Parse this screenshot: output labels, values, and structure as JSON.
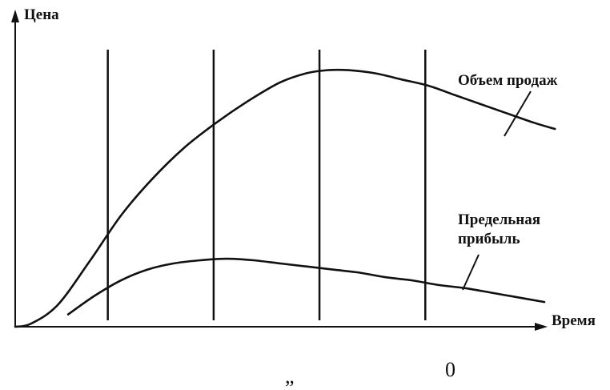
{
  "chart_data": {
    "type": "line",
    "title": "",
    "xlabel": "Время",
    "ylabel": "Цена",
    "xlim": [
      0,
      10
    ],
    "ylim": [
      0,
      10
    ],
    "grid": false,
    "stage_dividers_x": [
      1.75,
      3.75,
      5.75,
      7.75
    ],
    "series": [
      {
        "name": "Объем продаж",
        "x": [
          0.0,
          0.3,
          0.8,
          1.4,
          2.0,
          2.6,
          3.2,
          3.8,
          4.4,
          5.0,
          5.5,
          5.9,
          6.3,
          6.8,
          7.3,
          7.8,
          8.3,
          8.8,
          9.3,
          9.8,
          10.2
        ],
        "values": [
          0.0,
          0.1,
          0.7,
          2.1,
          3.6,
          4.8,
          5.8,
          6.6,
          7.3,
          7.9,
          8.2,
          8.3,
          8.3,
          8.2,
          8.0,
          7.8,
          7.5,
          7.2,
          6.9,
          6.6,
          6.4
        ]
      },
      {
        "name": "Предельная прибыль",
        "x": [
          1.0,
          1.5,
          2.0,
          2.5,
          3.0,
          3.5,
          4.0,
          4.5,
          5.0,
          5.5,
          6.0,
          6.5,
          7.0,
          7.5,
          8.0,
          8.5,
          9.0,
          9.5,
          10.0
        ],
        "values": [
          0.4,
          1.0,
          1.5,
          1.85,
          2.05,
          2.15,
          2.2,
          2.15,
          2.05,
          1.95,
          1.85,
          1.75,
          1.6,
          1.5,
          1.35,
          1.25,
          1.1,
          0.95,
          0.8
        ]
      }
    ],
    "annotations": [
      {
        "series": 0,
        "text": "Объем продаж"
      },
      {
        "series": 1,
        "text_lines": [
          "Предельная",
          "прибыль"
        ]
      }
    ]
  },
  "footer": {
    "left_mark": "„",
    "right_mark": "0"
  }
}
